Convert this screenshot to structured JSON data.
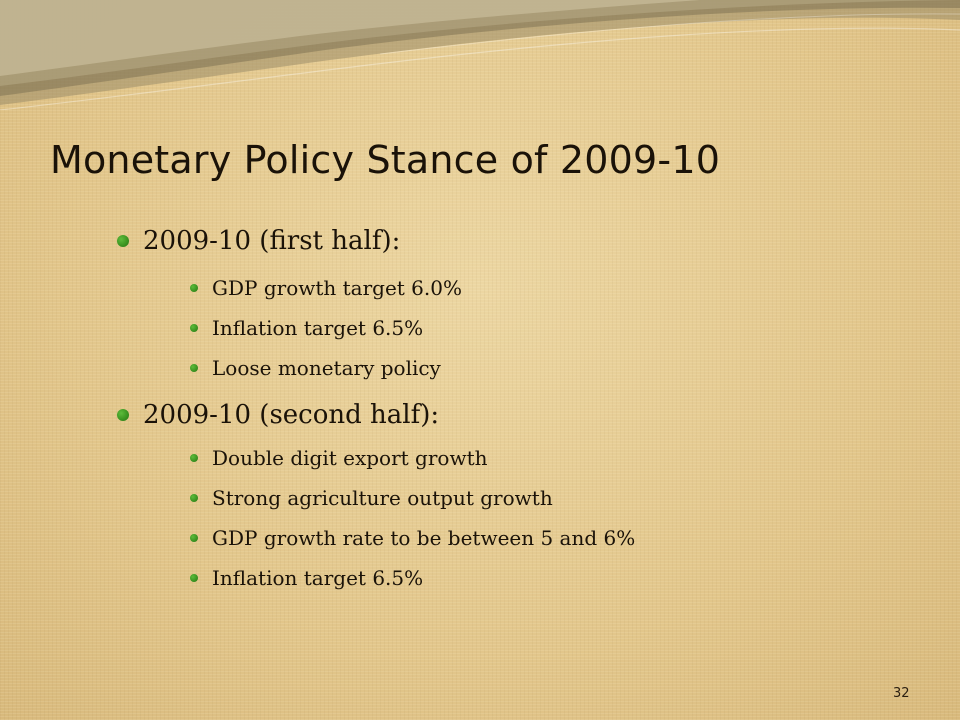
{
  "slide": {
    "title": "Monetary Policy Stance of 2009-10",
    "page_number": "32",
    "colors": {
      "background": "#e3c98f",
      "bullet": "#3c9622",
      "text": "#1a1208"
    },
    "sections": [
      {
        "heading": "2009-10 (first half):",
        "items": [
          "GDP growth target 6.0%",
          "Inflation target 6.5%",
          "Loose monetary policy"
        ]
      },
      {
        "heading": "2009-10 (second half):",
        "items": [
          "Double digit export growth",
          "Strong agriculture output growth",
          "GDP growth rate to be between 5 and 6%",
          "Inflation target 6.5%"
        ]
      }
    ]
  }
}
